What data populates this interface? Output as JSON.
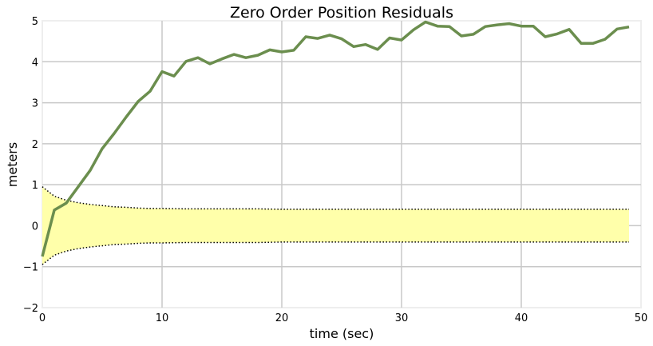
{
  "chart_data": {
    "type": "line",
    "title": "Zero Order Position Residuals",
    "xlabel": "time (sec)",
    "ylabel": "meters",
    "xlim": [
      0,
      50
    ],
    "ylim": [
      -2,
      5
    ],
    "xticks": [
      0,
      10,
      20,
      30,
      40,
      50
    ],
    "yticks": [
      -2,
      -1,
      0,
      1,
      2,
      3,
      4,
      5
    ],
    "grid": true,
    "colors": {
      "residual": "#6b8e4e",
      "band_fill": "#ffffaa",
      "band_edge": "#000000",
      "grid": "#c8c8c8",
      "frame": "#eeeeee"
    },
    "series": [
      {
        "x": [
          0,
          1,
          2,
          3,
          4,
          5,
          6,
          7,
          8,
          9,
          10,
          11,
          12,
          13,
          14,
          15,
          16,
          17,
          18,
          19,
          20,
          21,
          22,
          23,
          24,
          25,
          26,
          27,
          28,
          29,
          30,
          31,
          32,
          33,
          34,
          35,
          36,
          37,
          38,
          39,
          40,
          41,
          42,
          43,
          44,
          45,
          46,
          47,
          48,
          49
        ],
        "values": [
          -0.75,
          0.38,
          0.55,
          0.95,
          1.35,
          1.88,
          2.25,
          2.65,
          3.03,
          3.28,
          3.76,
          3.65,
          4.01,
          4.1,
          3.95,
          4.07,
          4.18,
          4.1,
          4.16,
          4.29,
          4.24,
          4.28,
          4.61,
          4.57,
          4.65,
          4.56,
          4.37,
          4.42,
          4.3,
          4.58,
          4.53,
          4.78,
          4.97,
          4.87,
          4.86,
          4.63,
          4.67,
          4.86,
          4.9,
          4.93,
          4.87,
          4.87,
          4.61,
          4.68,
          4.79,
          4.45,
          4.45,
          4.55,
          4.8,
          4.85
        ]
      },
      {
        "x": [
          0,
          1,
          2,
          3,
          4,
          5,
          6,
          7,
          8,
          9,
          10,
          12,
          14,
          16,
          18,
          20,
          25,
          30,
          35,
          40,
          45,
          49
        ],
        "values": [
          0.95,
          0.72,
          0.62,
          0.56,
          0.52,
          0.49,
          0.46,
          0.45,
          0.43,
          0.42,
          0.42,
          0.41,
          0.41,
          0.41,
          0.41,
          0.4,
          0.4,
          0.4,
          0.4,
          0.4,
          0.4,
          0.4
        ]
      }
    ]
  }
}
